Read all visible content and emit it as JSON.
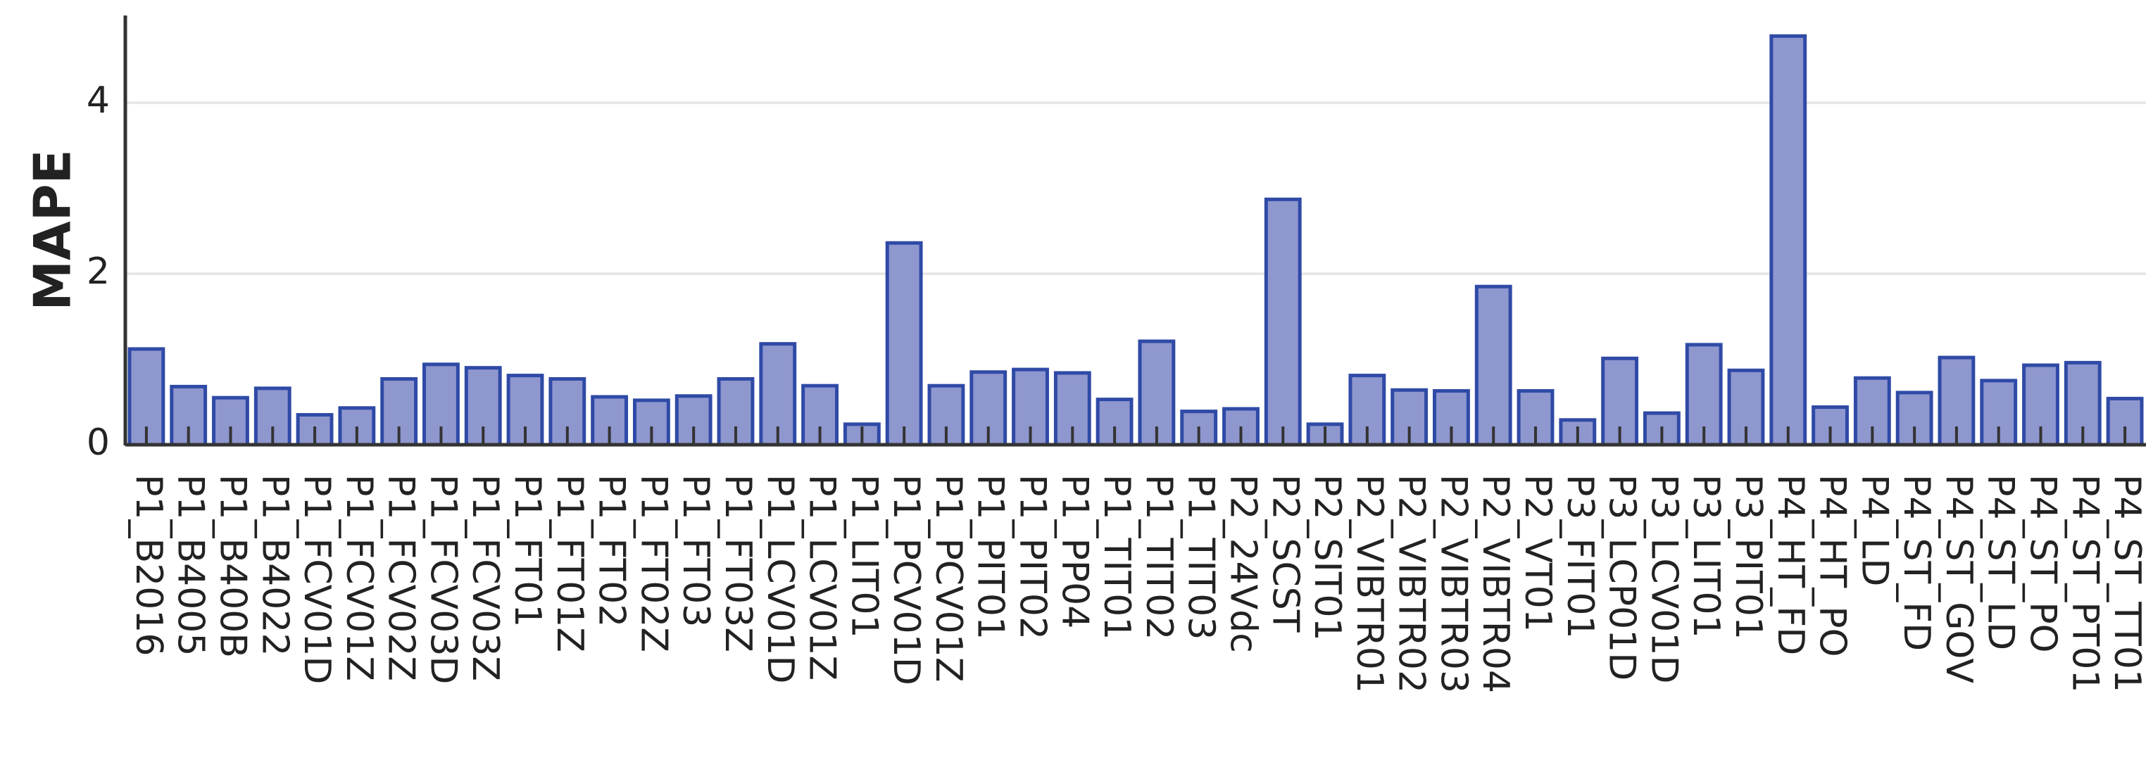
{
  "chart_data": {
    "type": "bar",
    "title": "",
    "xlabel": "",
    "ylabel": "MAPE",
    "ylim": [
      0,
      5
    ],
    "yticks": [
      0,
      2,
      4
    ],
    "ytick_labels": [
      "0",
      "2",
      "4"
    ],
    "grid": "horizontal",
    "legend": "none",
    "colors": {
      "bar_fill": "#8f97cf",
      "bar_edge": "#2f4aa6",
      "axis": "#333333",
      "grid": "#e8e8e8",
      "text": "#222222"
    },
    "categories": [
      "P1_B2016",
      "P1_B4005",
      "P1_B400B",
      "P1_B4022",
      "P1_FCV01D",
      "P1_FCV01Z",
      "P1_FCV02Z",
      "P1_FCV03D",
      "P1_FCV03Z",
      "P1_FT01",
      "P1_FT01Z",
      "P1_FT02",
      "P1_FT02Z",
      "P1_FT03",
      "P1_FT03Z",
      "P1_LCV01D",
      "P1_LCV01Z",
      "P1_LIT01",
      "P1_PCV01D",
      "P1_PCV01Z",
      "P1_PIT01",
      "P1_PIT02",
      "P1_PP04",
      "P1_TIT01",
      "P1_TIT02",
      "P1_TIT03",
      "P2_24Vdc",
      "P2_SCST",
      "P2_SIT01",
      "P2_VIBTR01",
      "P2_VIBTR02",
      "P2_VIBTR03",
      "P2_VIBTR04",
      "P2_VT01",
      "P3_FIT01",
      "P3_LCP01D",
      "P3_LCV01D",
      "P3_LIT01",
      "P3_PIT01",
      "P4_HT_FD",
      "P4_HT_PO",
      "P4_LD",
      "P4_ST_FD",
      "P4_ST_GOV",
      "P4_ST_LD",
      "P4_ST_PO",
      "P4_ST_PT01",
      "P4_ST_TT01"
    ],
    "values": [
      1.12,
      0.68,
      0.55,
      0.66,
      0.35,
      0.43,
      0.77,
      0.94,
      0.9,
      0.81,
      0.77,
      0.56,
      0.52,
      0.57,
      0.77,
      1.18,
      0.69,
      0.24,
      2.36,
      0.69,
      0.85,
      0.88,
      0.84,
      0.53,
      1.21,
      0.39,
      0.42,
      2.87,
      0.24,
      0.81,
      0.64,
      0.63,
      1.85,
      0.63,
      0.29,
      1.01,
      0.37,
      1.17,
      0.87,
      4.78,
      0.44,
      0.78,
      0.61,
      1.02,
      0.75,
      0.93,
      0.96,
      0.54
    ]
  }
}
